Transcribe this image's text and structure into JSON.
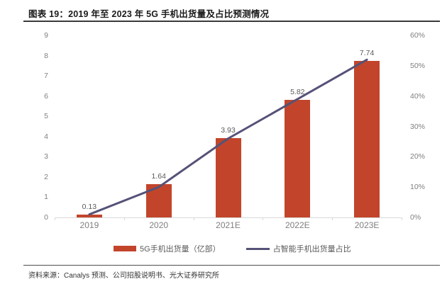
{
  "header": {
    "title": "图表 19：2019 年至 2023 年 5G 手机出货量及占比预测情况"
  },
  "source": {
    "text": "资料来源：Canalys 预测、公司招股说明书、光大证券研究所"
  },
  "colors": {
    "bar": "#C2452B",
    "line": "#555278",
    "axis_labels": "#7F7F7F",
    "data_labels": "#595959",
    "axis_line": "#D9D9D9",
    "title": "#1A1A1A"
  },
  "chart_data": {
    "type": "bar",
    "subtype": "combo-bar-line",
    "title": "2019 年至 2023 年 5G 手机出货量及占比预测情况",
    "categories": [
      "2019",
      "2020",
      "2021E",
      "2022E",
      "2023E"
    ],
    "series": [
      {
        "name": "5G手机出货量（亿部）",
        "type": "bar",
        "axis": "left",
        "values": [
          0.13,
          1.64,
          3.93,
          5.82,
          7.74
        ],
        "data_labels": [
          "0.13",
          "1.64",
          "3.93",
          "5.82",
          "7.74"
        ],
        "color": "#C2452B"
      },
      {
        "name": "占智能手机出货量占比",
        "type": "line",
        "axis": "right",
        "values": [
          1,
          10,
          26,
          39,
          52
        ],
        "color": "#555278"
      }
    ],
    "left_axis": {
      "min": 0,
      "max": 9,
      "step": 1,
      "tick_labels": [
        "0",
        "1",
        "2",
        "3",
        "4",
        "5",
        "6",
        "7",
        "8",
        "9"
      ]
    },
    "right_axis": {
      "min": 0,
      "max": 60,
      "step": 10,
      "tick_labels": [
        "0%",
        "10%",
        "20%",
        "30%",
        "40%",
        "50%",
        "60%"
      ]
    },
    "grid": false,
    "legend_position": "bottom",
    "xlabel": "",
    "ylabel_left": "",
    "ylabel_right": ""
  }
}
